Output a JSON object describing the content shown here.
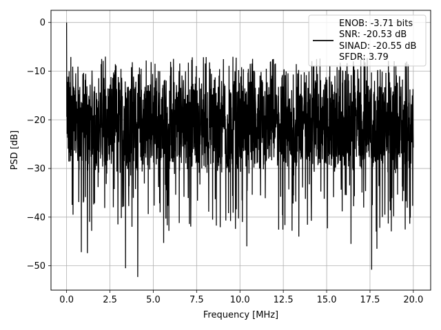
{
  "chart_data": {
    "type": "line",
    "title": "",
    "xlabel": "Frequency [MHz]",
    "ylabel": "PSD [dB]",
    "xlim": [
      -0.9,
      21.0
    ],
    "ylim": [
      -55,
      2.5
    ],
    "xticks": [
      0.0,
      2.5,
      5.0,
      7.5,
      10.0,
      12.5,
      15.0,
      17.5,
      20.0
    ],
    "xtick_labels": [
      "0.0",
      "2.5",
      "5.0",
      "7.5",
      "10.0",
      "12.5",
      "15.0",
      "17.5",
      "20.0"
    ],
    "yticks": [
      0,
      -10,
      -20,
      -30,
      -40,
      -50
    ],
    "ytick_labels": [
      "0",
      "−10",
      "−20",
      "−30",
      "−40",
      "−50"
    ],
    "grid": true,
    "legend": {
      "placement": "top-right",
      "entries": [
        "ENOB: -3.71 bits",
        "SNR: -20.53 dB",
        "SINAD: -20.55 dB",
        "SFDR: 3.79"
      ]
    },
    "series": [
      {
        "color": "#000000",
        "x_range": [
          0.0,
          20.0
        ],
        "num_points": 2048,
        "peak": {
          "x": 0.0,
          "y": 0.0
        },
        "envelope_max": -7,
        "envelope_min": -52.3,
        "typical_level": -21,
        "notable_minima": [
          {
            "x": 0.85,
            "y": -47.2
          },
          {
            "x": 1.2,
            "y": -47.4
          },
          {
            "x": 3.4,
            "y": -50.5
          },
          {
            "x": 4.1,
            "y": -52.3
          },
          {
            "x": 5.6,
            "y": -45.3
          },
          {
            "x": 10.4,
            "y": -46.0
          },
          {
            "x": 13.4,
            "y": -44.0
          },
          {
            "x": 16.4,
            "y": -45.5
          },
          {
            "x": 17.6,
            "y": -50.8
          },
          {
            "x": 17.9,
            "y": -46.5
          }
        ]
      }
    ]
  }
}
